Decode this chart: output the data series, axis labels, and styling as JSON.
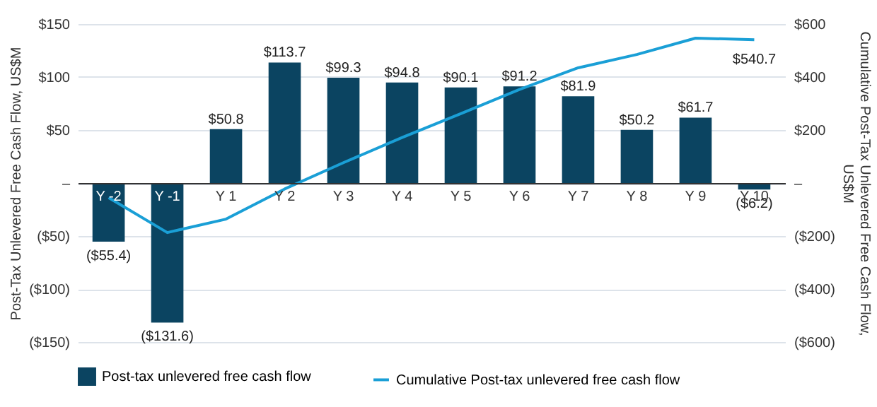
{
  "chart_data": {
    "type": "bar",
    "ylabel": "Post-Tax Unlevered Free Cash Flow, US$M",
    "y2label": "Cumulative Post-Tax Unlevered Free Cash Flow, US$M",
    "categories": [
      "Y -2",
      "Y -1",
      "Y 1",
      "Y 2",
      "Y 3",
      "Y 4",
      "Y 5",
      "Y 6",
      "Y 7",
      "Y 8",
      "Y 9",
      "Y 10"
    ],
    "series": [
      {
        "name": "Post-tax unlevered free cash flow",
        "color": "#0b4461",
        "values": [
          -55.4,
          -131.6,
          50.8,
          113.7,
          99.3,
          94.8,
          90.1,
          91.2,
          81.9,
          50.2,
          61.7,
          -6.2
        ],
        "value_labels": [
          "($55.4)",
          "($131.6)",
          "$50.8",
          "$113.7",
          "$99.3",
          "$94.8",
          "$90.1",
          "$91.2",
          "$81.9",
          "$50.2",
          "$61.7",
          "($6.2)"
        ]
      },
      {
        "name": "Cumulative Post-tax unlevered free cash flow",
        "type": "line",
        "axis": "y2",
        "color": "#1a9fd6",
        "values": [
          -55.4,
          -187,
          -136.2,
          -22.5,
          76.8,
          171.6,
          261.7,
          352.9,
          434.8,
          485,
          546.7,
          540.7
        ],
        "value_labels": [
          null,
          null,
          null,
          null,
          null,
          null,
          null,
          null,
          null,
          null,
          null,
          "$540.7"
        ]
      }
    ],
    "ylim": [
      -150,
      150
    ],
    "yticks": [
      {
        "value": -150,
        "label": "($150)"
      },
      {
        "value": -100,
        "label": "($100)"
      },
      {
        "value": -50,
        "label": "($50)"
      },
      {
        "value": 0,
        "label": "–"
      },
      {
        "value": 50,
        "label": "$50"
      },
      {
        "value": 100,
        "label": "$100"
      },
      {
        "value": 150,
        "label": "$150"
      }
    ],
    "y2lim": [
      -600,
      600
    ],
    "y2ticks": [
      {
        "value": -600,
        "label": "($600)"
      },
      {
        "value": -400,
        "label": "($400)"
      },
      {
        "value": -200,
        "label": "($200)"
      },
      {
        "value": 0,
        "label": "–"
      },
      {
        "value": 200,
        "label": "$200"
      },
      {
        "value": 400,
        "label": "$400"
      },
      {
        "value": 600,
        "label": "$600"
      }
    ],
    "grid": "y",
    "legend": "bottom"
  }
}
